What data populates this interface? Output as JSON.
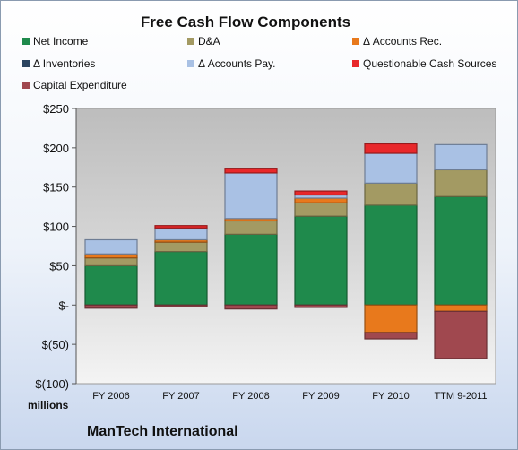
{
  "chart_data": {
    "type": "bar",
    "stacked": true,
    "title": "Free Cash Flow Components",
    "xlabel": "",
    "ylabel": "millions",
    "subtitle_bottom": "ManTech International",
    "ylim": [
      -100,
      250
    ],
    "yticks": [
      250,
      200,
      150,
      100,
      50,
      0,
      -50,
      -100
    ],
    "ytick_labels": [
      "$250",
      "$200",
      "$150",
      "$100",
      "$50",
      "$-",
      "$(50)",
      "$(100)"
    ],
    "categories": [
      "FY 2006",
      "FY 2007",
      "FY 2008",
      "FY 2009",
      "FY 2010",
      "TTM 9-2011"
    ],
    "legend_position": "top",
    "grid": false,
    "series": [
      {
        "name": "Net Income",
        "color": "#1f8a4c",
        "values": [
          50,
          68,
          90,
          113,
          127,
          138
        ]
      },
      {
        "name": "D&A",
        "color": "#a39a63",
        "values": [
          10,
          12,
          17,
          17,
          28,
          34
        ]
      },
      {
        "name": "Δ Accounts Rec.",
        "color": "#e8791c",
        "values": [
          5,
          3,
          3,
          6,
          -35,
          -8
        ]
      },
      {
        "name": "Δ Inventories",
        "color": "#2b4560",
        "values": [
          0,
          0,
          0,
          0,
          0,
          0
        ]
      },
      {
        "name": "Δ Accounts Pay.",
        "color": "#a9c1e4",
        "values": [
          18,
          15,
          58,
          4,
          38,
          32
        ]
      },
      {
        "name": "Questionable Cash Sources",
        "color": "#e8282b",
        "values": [
          0,
          3,
          6,
          5,
          12,
          0
        ]
      },
      {
        "name": "Capital Expenditure",
        "color": "#a0484f",
        "values": [
          -4,
          -2,
          -5,
          -3,
          -8,
          -60
        ]
      }
    ]
  }
}
